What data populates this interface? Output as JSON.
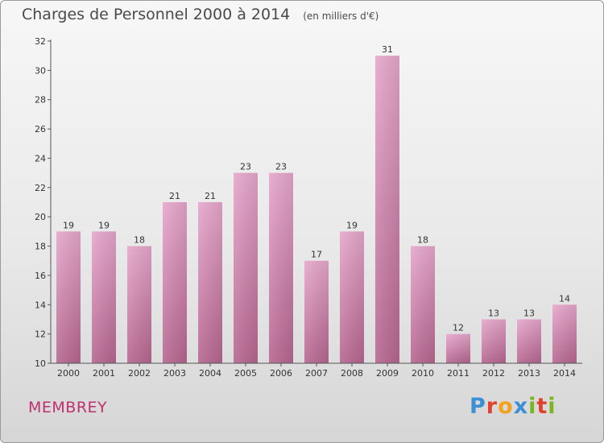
{
  "chart_data": {
    "type": "bar",
    "title": "Charges de Personnel 2000 à 2014",
    "subtitle": "(en milliers d'€)",
    "categories": [
      "2000",
      "2001",
      "2002",
      "2003",
      "2004",
      "2005",
      "2006",
      "2007",
      "2008",
      "2009",
      "2010",
      "2011",
      "2012",
      "2013",
      "2014"
    ],
    "values": [
      19,
      19,
      18,
      21,
      21,
      23,
      23,
      17,
      19,
      31,
      18,
      12,
      13,
      13,
      14
    ],
    "ylim": [
      10,
      32
    ],
    "yticks": [
      10,
      12,
      14,
      16,
      18,
      20,
      22,
      24,
      26,
      28,
      30,
      32
    ],
    "grid": false,
    "legend": "none",
    "bar_color": "#d98ab7"
  },
  "commune": "MEMBREY",
  "logo": {
    "text": "Proxiti",
    "letters": [
      {
        "ch": "P",
        "color": "#3b8fd4"
      },
      {
        "ch": "r",
        "color": "#e0412c"
      },
      {
        "ch": "o",
        "color": "#f2a21b"
      },
      {
        "ch": "x",
        "color": "#3b8fd4"
      },
      {
        "ch": "i",
        "color": "#7ab51d"
      },
      {
        "ch": "t",
        "color": "#e0412c"
      },
      {
        "ch": "i",
        "color": "#7ab51d"
      }
    ]
  }
}
